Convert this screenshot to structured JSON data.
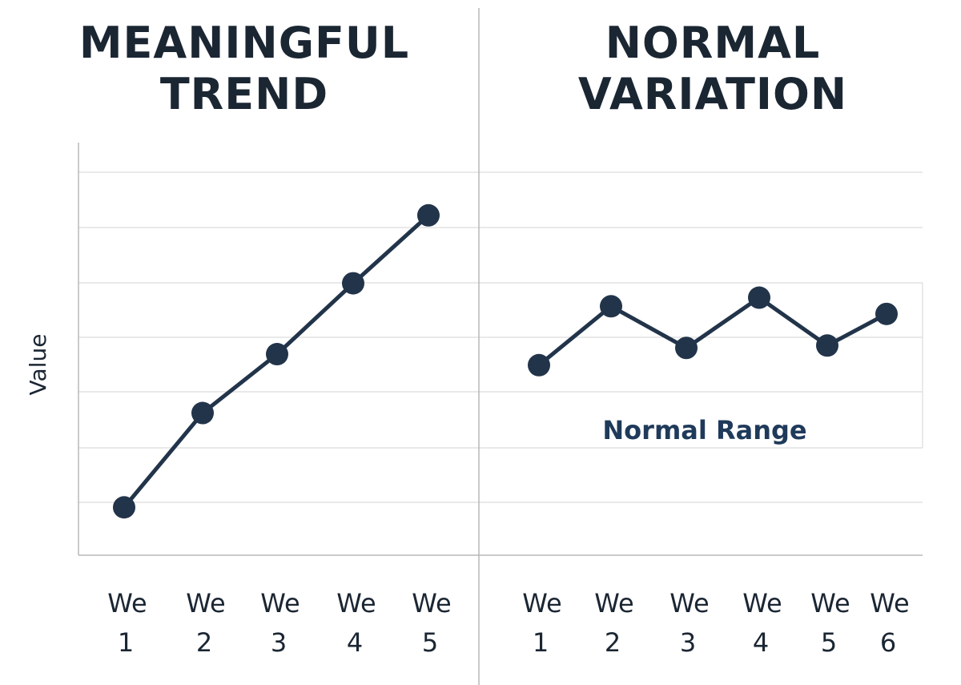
{
  "colors": {
    "line": "#22344a",
    "grid": "#dcdcdc",
    "axis": "#b8b8b8",
    "text": "#1b2633",
    "annotation": "#1f3a5a"
  },
  "chart_data": [
    {
      "type": "line",
      "title_lines": [
        "MEANINGFUL",
        "TREND"
      ],
      "ylabel": "Value",
      "categories": [
        [
          "We",
          "1"
        ],
        [
          "We",
          "2"
        ],
        [
          "We",
          "3"
        ],
        [
          "We",
          "4"
        ],
        [
          "We",
          "5"
        ]
      ],
      "values": [
        1,
        2.97,
        4.2,
        5.68,
        7.1
      ],
      "ylim": [
        0,
        8
      ],
      "grid": true
    },
    {
      "type": "line",
      "title_lines": [
        "NORMAL",
        "VARIATION"
      ],
      "categories": [
        [
          "We",
          "1"
        ],
        [
          "We",
          "2"
        ],
        [
          "We",
          "3"
        ],
        [
          "We",
          "4"
        ],
        [
          "We",
          "5"
        ],
        [
          "We",
          "6"
        ]
      ],
      "values": [
        3.97,
        5.2,
        4.33,
        5.38,
        4.38,
        5.04
      ],
      "ylim": [
        0,
        8
      ],
      "grid": true,
      "annotation": "Normal Range"
    }
  ]
}
